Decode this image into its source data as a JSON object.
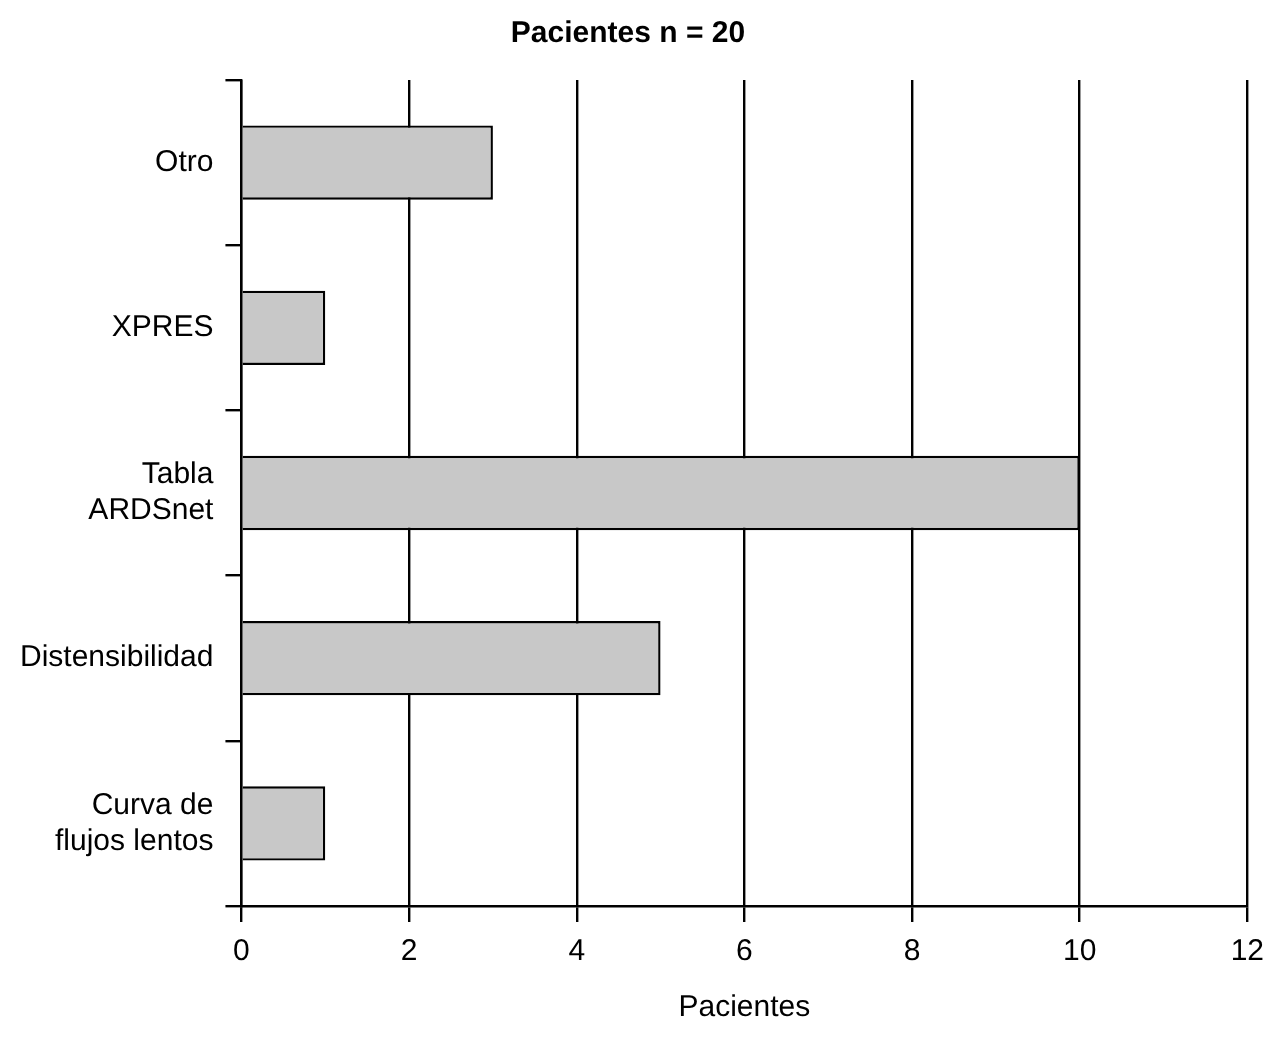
{
  "chart_data": {
    "type": "bar",
    "orientation": "horizontal",
    "title": "Pacientes n = 20",
    "xlabel": "Pacientes",
    "categories": [
      "Otro",
      "XPRES",
      "Tabla\nARDSnet",
      "Distensibilidad",
      "Curva de\nflujos lentos"
    ],
    "values": [
      3,
      1,
      10,
      5,
      1
    ],
    "color": "#c8c8c8",
    "xlim": [
      0,
      12
    ],
    "xticks": [
      0,
      2,
      4,
      6,
      8,
      10,
      12
    ],
    "grid": "x"
  }
}
